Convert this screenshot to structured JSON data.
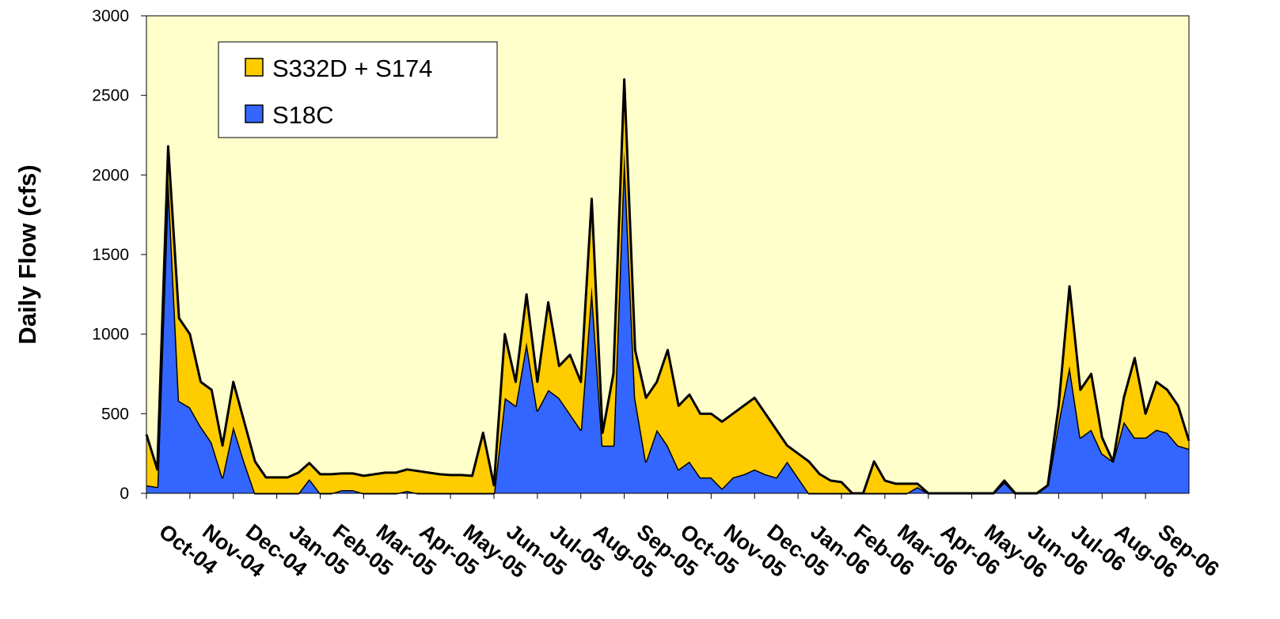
{
  "chart_data": {
    "type": "stacked_area",
    "y_label": "Daily Flow (cfs)",
    "categories": [
      "Oct-04",
      null,
      null,
      null,
      "Nov-04",
      null,
      null,
      null,
      "Dec-04",
      null,
      null,
      null,
      "Jan-05",
      null,
      null,
      null,
      "Feb-05",
      null,
      null,
      null,
      "Mar-05",
      null,
      null,
      null,
      "Apr-05",
      null,
      null,
      null,
      "May-05",
      null,
      null,
      null,
      "Jun-05",
      null,
      null,
      null,
      "Jul-05",
      null,
      null,
      null,
      "Aug-05",
      null,
      null,
      null,
      "Sep-05",
      null,
      null,
      null,
      "Oct-05",
      null,
      null,
      null,
      "Nov-05",
      null,
      null,
      null,
      "Dec-05",
      null,
      null,
      null,
      "Jan-06",
      null,
      null,
      null,
      "Feb-06",
      null,
      null,
      null,
      "Mar-06",
      null,
      null,
      null,
      "Apr-06",
      null,
      null,
      null,
      "May-06",
      null,
      null,
      null,
      "Jun-06",
      null,
      null,
      null,
      "Jul-06",
      null,
      null,
      null,
      "Aug-06",
      null,
      null,
      null,
      "Sep-06",
      null,
      null,
      null,
      null
    ],
    "series": [
      {
        "name": "S332D + S174",
        "color": "#FFCC00",
        "values": [
          320,
          110,
          180,
          520,
          460,
          280,
          330,
          200,
          280,
          250,
          200,
          100,
          100,
          100,
          130,
          100,
          120,
          120,
          105,
          105,
          110,
          120,
          130,
          130,
          135,
          140,
          130,
          120,
          115,
          115,
          110,
          380,
          50,
          400,
          150,
          300,
          180,
          550,
          200,
          370,
          300,
          550,
          80,
          450,
          450,
          300,
          400,
          300,
          600,
          400,
          420,
          400,
          400,
          420,
          400,
          430,
          450,
          380,
          300,
          100,
          150,
          200,
          120,
          80,
          70,
          0,
          0,
          200,
          80,
          60,
          60,
          20,
          0,
          0,
          0,
          0,
          0,
          0,
          0,
          10,
          0,
          0,
          0,
          0,
          100,
          500,
          300,
          350,
          100,
          0,
          150,
          500,
          150,
          300,
          270,
          250,
          50
        ]
      },
      {
        "name": "S18C",
        "color": "#3366FF",
        "values": [
          50,
          40,
          2000,
          580,
          540,
          420,
          320,
          100,
          420,
          200,
          0,
          0,
          0,
          0,
          0,
          90,
          0,
          0,
          20,
          20,
          0,
          0,
          0,
          0,
          15,
          0,
          0,
          0,
          0,
          0,
          0,
          0,
          0,
          600,
          550,
          950,
          520,
          650,
          600,
          500,
          400,
          1300,
          300,
          300,
          2150,
          600,
          200,
          400,
          300,
          150,
          200,
          100,
          100,
          30,
          100,
          120,
          150,
          120,
          100,
          200,
          100,
          0,
          0,
          0,
          0,
          0,
          0,
          0,
          0,
          0,
          0,
          40,
          0,
          0,
          0,
          0,
          0,
          0,
          0,
          70,
          0,
          0,
          0,
          50,
          450,
          800,
          350,
          400,
          250,
          200,
          450,
          350,
          350,
          400,
          380,
          300,
          280
        ]
      }
    ],
    "ylim": [
      0,
      3000
    ],
    "yticks": [
      0,
      500,
      1000,
      1500,
      2000,
      2500,
      3000
    ],
    "plot_background": "#FFFFCC",
    "legend": "upper left"
  }
}
